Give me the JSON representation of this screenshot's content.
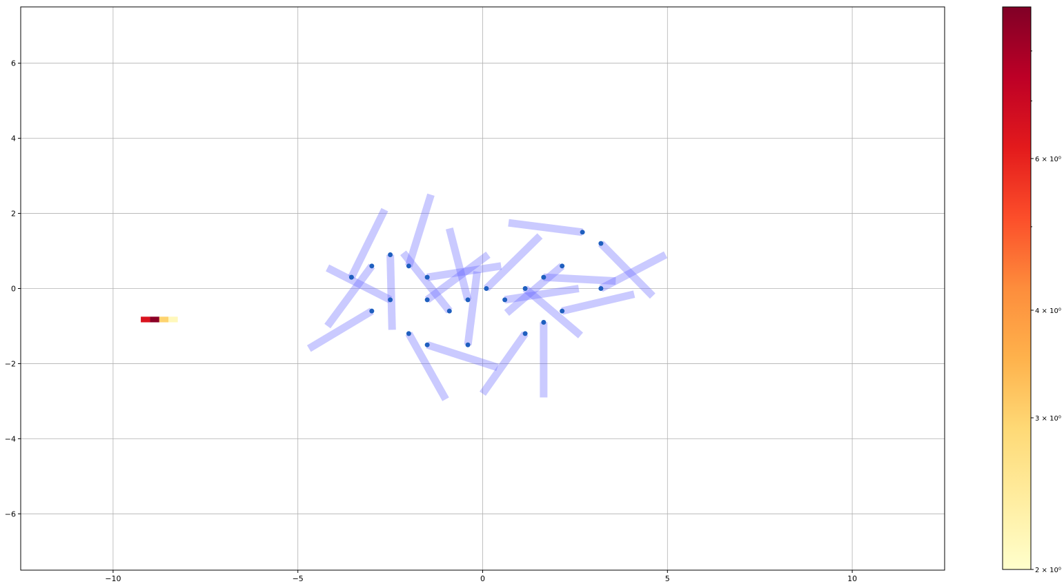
{
  "chart_data": [
    {
      "type": "scatter",
      "title": "",
      "xlabel": "",
      "ylabel": "",
      "xlim": [
        -12.5,
        12.5
      ],
      "ylim": [
        -7.5,
        7.5
      ],
      "xticks": [
        -10,
        -5,
        0,
        5,
        10
      ],
      "yticks": [
        -6,
        -4,
        -2,
        0,
        2,
        4,
        6
      ],
      "xtick_labels": [
        "−10",
        "−5",
        "0",
        "5",
        "10"
      ],
      "ytick_labels": [
        "−6",
        "−4",
        "−2",
        "0",
        "2",
        "4",
        "6"
      ],
      "grid": true,
      "marker_color": "#1f5fbf",
      "segment_color": "#6666ff",
      "points": [
        {
          "x": -3.55,
          "y": 0.3,
          "x2": -2.65,
          "y2": 2.1
        },
        {
          "x": -3.0,
          "y": 0.6,
          "x2": -4.2,
          "y2": -1.0
        },
        {
          "x": -2.5,
          "y": 0.9,
          "x2": -2.45,
          "y2": -1.1
        },
        {
          "x": -2.5,
          "y": -0.3,
          "x2": -4.2,
          "y2": 0.55
        },
        {
          "x": -3.0,
          "y": -0.6,
          "x2": -4.7,
          "y2": -1.6
        },
        {
          "x": -2.0,
          "y": 0.6,
          "x2": -1.4,
          "y2": 2.5
        },
        {
          "x": -2.0,
          "y": -1.2,
          "x2": -1.0,
          "y2": -2.95
        },
        {
          "x": -1.5,
          "y": 0.3,
          "x2": 0.5,
          "y2": 0.6
        },
        {
          "x": -1.5,
          "y": -0.3,
          "x2": 0.15,
          "y2": 0.9
        },
        {
          "x": -1.5,
          "y": -1.5,
          "x2": 0.4,
          "y2": -2.1
        },
        {
          "x": -0.9,
          "y": -0.6,
          "x2": -2.15,
          "y2": 0.95
        },
        {
          "x": -0.4,
          "y": -0.3,
          "x2": -0.9,
          "y2": 1.6
        },
        {
          "x": -0.4,
          "y": -1.5,
          "x2": -0.15,
          "y2": 0.45
        },
        {
          "x": 0.1,
          "y": 0.0,
          "x2": 1.55,
          "y2": 1.4
        },
        {
          "x": 0.6,
          "y": -0.3,
          "x2": 2.6,
          "y2": 0.0
        },
        {
          "x": 1.15,
          "y": 0.0,
          "x2": 2.65,
          "y2": -1.25
        },
        {
          "x": 1.15,
          "y": -1.2,
          "x2": 0.0,
          "y2": -2.8
        },
        {
          "x": 1.65,
          "y": 0.3,
          "x2": 3.6,
          "y2": 0.2
        },
        {
          "x": 1.65,
          "y": -0.9,
          "x2": 1.65,
          "y2": -2.9
        },
        {
          "x": 2.15,
          "y": 0.6,
          "x2": 0.65,
          "y2": -0.65
        },
        {
          "x": 2.15,
          "y": -0.6,
          "x2": 4.1,
          "y2": -0.15
        },
        {
          "x": 2.7,
          "y": 1.5,
          "x2": 0.7,
          "y2": 1.75
        },
        {
          "x": 3.2,
          "y": 1.2,
          "x2": 4.6,
          "y2": -0.2
        },
        {
          "x": 3.2,
          "y": 0.0,
          "x2": 4.95,
          "y2": 0.9
        }
      ]
    },
    {
      "type": "heatmap",
      "scale": "log",
      "colormap": [
        "#ffffcc",
        "#ffeda0",
        "#fed976",
        "#feb24c",
        "#fd8d3c",
        "#fc4e2a",
        "#e31a1c",
        "#bd0026",
        "#800026"
      ],
      "cells": [
        {
          "x0": -9.25,
          "x1": -9.0,
          "y0": -0.9,
          "y1": -0.75,
          "value": 6.5
        },
        {
          "x0": -9.0,
          "x1": -8.75,
          "y0": -0.9,
          "y1": -0.75,
          "value": 8.7
        },
        {
          "x0": -8.75,
          "x1": -8.5,
          "y0": -0.9,
          "y1": -0.75,
          "value": 3.0
        },
        {
          "x0": -8.5,
          "x1": -8.25,
          "y0": -0.9,
          "y1": -0.75,
          "value": 2.15
        }
      ],
      "colorbar": {
        "min": 2,
        "max": 9,
        "tick_values": [
          2,
          3,
          4,
          6
        ],
        "tick_labels": [
          "2 × 10⁰",
          "3 × 10⁰",
          "4 × 10⁰",
          "6 × 10⁰"
        ],
        "minor_tick_values": [
          5,
          7,
          8
        ]
      }
    }
  ]
}
